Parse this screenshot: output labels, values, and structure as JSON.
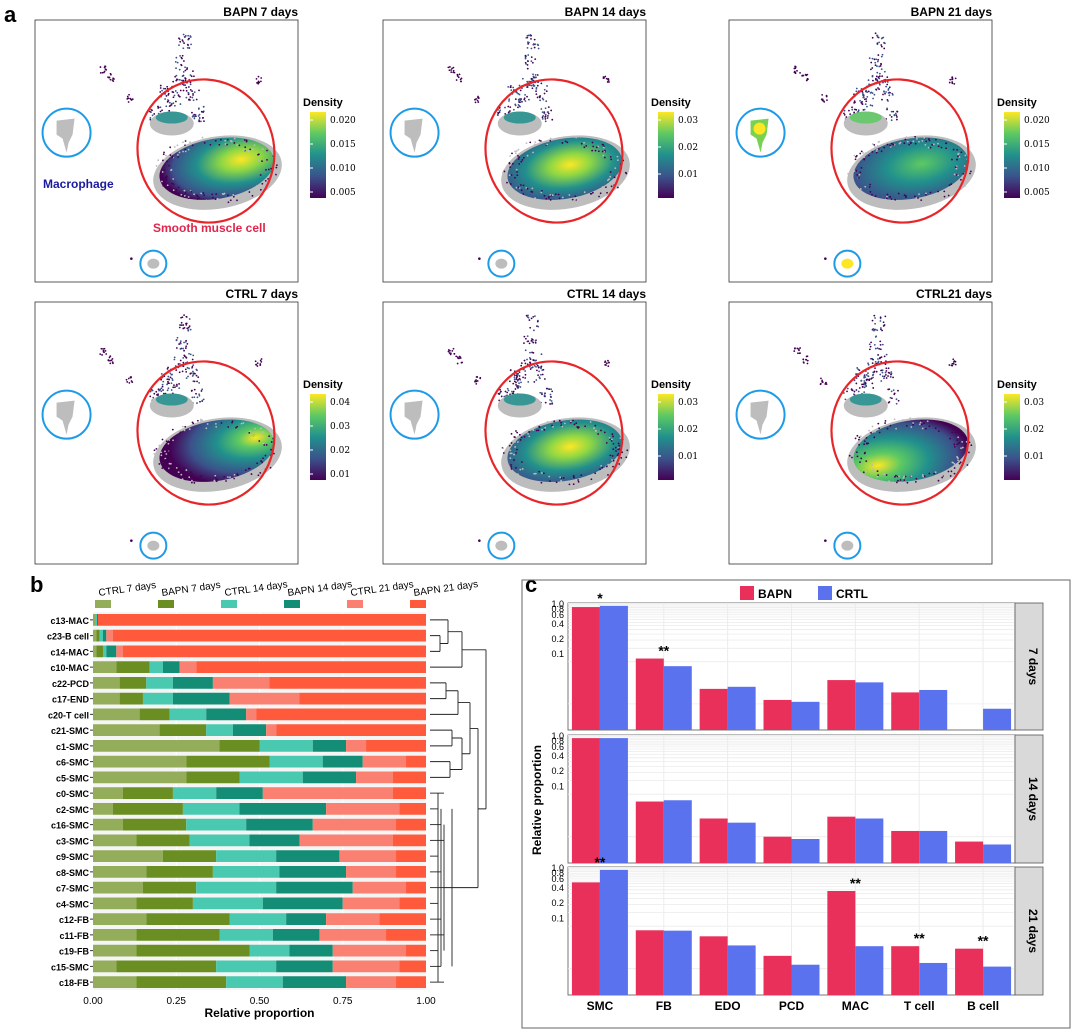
{
  "panel_labels": {
    "a": "a",
    "b": "b",
    "c": "c"
  },
  "colors": {
    "smc_ring": "#e8262a",
    "mac_ring": "#1e9be8",
    "grey_cells": "#bdbdbd",
    "macrophage_label": "#1a1aa0",
    "smc_label": "#e0264b",
    "bapn": "#e8305a",
    "crtl": "#5b72ef",
    "strip_bg": "#d9d9d9",
    "viridis": [
      "#440154",
      "#3b528b",
      "#21908d",
      "#5dc963",
      "#fde725"
    ]
  },
  "chart_data": [
    {
      "type": "density_embedding",
      "panel": "a",
      "annotations": {
        "macrophage": "Macrophage",
        "smooth_muscle": "Smooth muscle cell"
      },
      "legend_title": "Density",
      "plots": [
        {
          "title": "BAPN 7 days",
          "ticks": [
            "0.020",
            "0.015",
            "0.010",
            "0.005"
          ],
          "hotspot": "right",
          "mac_density": "low"
        },
        {
          "title": "BAPN 14 days",
          "ticks": [
            "0.03",
            "0.02",
            "0.01"
          ],
          "hotspot": "center",
          "mac_density": "low"
        },
        {
          "title": "BAPN 21 days",
          "ticks": [
            "0.020",
            "0.015",
            "0.010",
            "0.005"
          ],
          "hotspot": "diffuse",
          "mac_density": "high"
        },
        {
          "title": "CTRL 7 days",
          "ticks": [
            "0.04",
            "0.03",
            "0.02",
            "0.01"
          ],
          "hotspot": "far-right",
          "mac_density": "low"
        },
        {
          "title": "CTRL 14 days",
          "ticks": [
            "0.03",
            "0.02",
            "0.01"
          ],
          "hotspot": "center",
          "mac_density": "low"
        },
        {
          "title": "CTRL21 days",
          "ticks": [
            "0.03",
            "0.02",
            "0.01"
          ],
          "hotspot": "left",
          "mac_density": "low"
        }
      ]
    },
    {
      "type": "bar",
      "stacked": true,
      "orientation": "horizontal",
      "panel": "b",
      "xlabel": "Relative proportion",
      "xlim": [
        0,
        1
      ],
      "xticks": [
        "0.00",
        "0.25",
        "0.50",
        "0.75",
        "1.00"
      ],
      "legend": [
        {
          "name": "CTRL 7 days",
          "color": "#93ad5a"
        },
        {
          "name": "BAPN 7 days",
          "color": "#6b8e23"
        },
        {
          "name": "CTRL 14 days",
          "color": "#48c9b0"
        },
        {
          "name": "BAPN 14 days",
          "color": "#138d75"
        },
        {
          "name": "CTRL 21 days",
          "color": "#fa8072"
        },
        {
          "name": "BAPN 21 days",
          "color": "#ff5a3c"
        }
      ],
      "categories": [
        "c13-MAC",
        "c23-B cell",
        "c14-MAC",
        "c10-MAC",
        "c22-PCD",
        "c17-END",
        "c20-T cell",
        "c21-SMC",
        "c1-SMC",
        "c6-SMC",
        "c5-SMC",
        "c0-SMC",
        "c2-SMC",
        "c16-SMC",
        "c3-SMC",
        "c9-SMC",
        "c8-SMC",
        "c7-SMC",
        "c4-SMC",
        "c12-FB",
        "c11-FB",
        "c19-FB",
        "c15-SMC",
        "c18-FB"
      ],
      "rows": [
        [
          0.005,
          0.002,
          0.005,
          0.003,
          0.0,
          0.985
        ],
        [
          0.01,
          0.01,
          0.01,
          0.01,
          0.02,
          0.94
        ],
        [
          0.01,
          0.02,
          0.01,
          0.03,
          0.02,
          0.91
        ],
        [
          0.07,
          0.1,
          0.04,
          0.05,
          0.05,
          0.69
        ],
        [
          0.08,
          0.08,
          0.08,
          0.12,
          0.17,
          0.47
        ],
        [
          0.08,
          0.07,
          0.09,
          0.17,
          0.21,
          0.38
        ],
        [
          0.14,
          0.09,
          0.11,
          0.12,
          0.03,
          0.51
        ],
        [
          0.2,
          0.14,
          0.08,
          0.1,
          0.03,
          0.45
        ],
        [
          0.38,
          0.12,
          0.16,
          0.1,
          0.06,
          0.18
        ],
        [
          0.28,
          0.25,
          0.16,
          0.12,
          0.13,
          0.06
        ],
        [
          0.28,
          0.16,
          0.19,
          0.16,
          0.11,
          0.1
        ],
        [
          0.09,
          0.15,
          0.13,
          0.14,
          0.39,
          0.1
        ],
        [
          0.06,
          0.21,
          0.17,
          0.26,
          0.22,
          0.08
        ],
        [
          0.09,
          0.19,
          0.18,
          0.2,
          0.25,
          0.09
        ],
        [
          0.13,
          0.16,
          0.18,
          0.15,
          0.28,
          0.1
        ],
        [
          0.21,
          0.16,
          0.18,
          0.19,
          0.17,
          0.09
        ],
        [
          0.16,
          0.2,
          0.2,
          0.2,
          0.15,
          0.09
        ],
        [
          0.15,
          0.16,
          0.24,
          0.23,
          0.16,
          0.06
        ],
        [
          0.13,
          0.17,
          0.21,
          0.24,
          0.17,
          0.08
        ],
        [
          0.16,
          0.25,
          0.17,
          0.12,
          0.16,
          0.14
        ],
        [
          0.13,
          0.25,
          0.16,
          0.14,
          0.2,
          0.12
        ],
        [
          0.13,
          0.34,
          0.12,
          0.13,
          0.22,
          0.06
        ],
        [
          0.07,
          0.3,
          0.18,
          0.17,
          0.2,
          0.08
        ],
        [
          0.13,
          0.27,
          0.17,
          0.19,
          0.15,
          0.09
        ]
      ]
    },
    {
      "type": "bar",
      "panel": "c",
      "ylabel": "Relative proportion",
      "yscale": "log",
      "yticks": [
        "0.1",
        "0.2",
        "0.4",
        "0.6",
        "0.8",
        "1.0"
      ],
      "categories": [
        "SMC",
        "FB",
        "EDO",
        "PCD",
        "MAC",
        "T cell",
        "B cell"
      ],
      "legend": [
        "BAPN",
        "CRTL"
      ],
      "facets": [
        {
          "label": "7 days",
          "series": [
            {
              "name": "BAPN",
              "values": [
                0.87,
                0.081,
                0.02,
                0.012,
                0.03,
                0.017,
                0.0
              ]
            },
            {
              "name": "CRTL",
              "values": [
                0.92,
                0.057,
                0.022,
                0.011,
                0.027,
                0.019,
                0.008
              ]
            }
          ],
          "annotations": [
            {
              "category": "SMC",
              "text": "*"
            },
            {
              "category": "FB",
              "text": "**"
            }
          ]
        },
        {
          "label": "14 days",
          "series": [
            {
              "name": "BAPN",
              "values": [
                0.91,
                0.05,
                0.023,
                0.01,
                0.025,
                0.013,
                0.008
              ]
            },
            {
              "name": "CRTL",
              "values": [
                0.91,
                0.053,
                0.019,
                0.009,
                0.023,
                0.013,
                0.007
              ]
            }
          ],
          "annotations": []
        },
        {
          "label": "21 days",
          "series": [
            {
              "name": "BAPN",
              "values": [
                0.52,
                0.058,
                0.044,
                0.018,
                0.35,
                0.028,
                0.025
              ]
            },
            {
              "name": "CRTL",
              "values": [
                0.92,
                0.057,
                0.029,
                0.012,
                0.028,
                0.013,
                0.011
              ]
            }
          ],
          "annotations": [
            {
              "category": "SMC",
              "text": "**"
            },
            {
              "category": "MAC",
              "text": "**"
            },
            {
              "category": "T cell",
              "text": "**"
            },
            {
              "category": "B cell",
              "text": "**"
            }
          ]
        }
      ]
    }
  ]
}
